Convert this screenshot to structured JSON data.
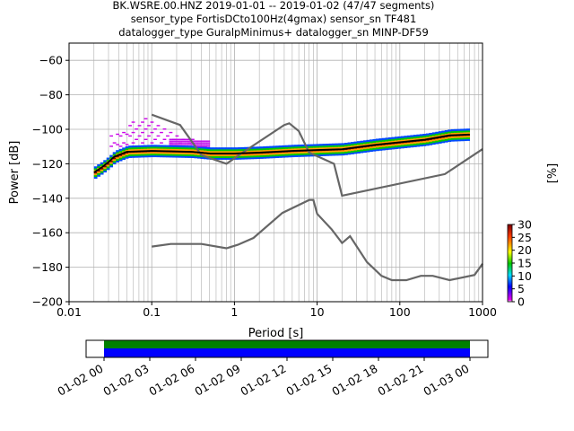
{
  "title_lines": [
    "BK.WSRE.00.HNZ   2019-01-01 -- 2019-01-02  (47/47 segments)",
    "sensor_type FortisDCto100Hz(4gmax) sensor_sn TF481",
    "datalogger_type GuralpMinimus+ datalogger_sn MINP-DF59"
  ],
  "chart_data": {
    "type": "heatmap",
    "xlabel": "Period [s]",
    "ylabel": "Power [dB]",
    "xscale": "log",
    "xlim": [
      0.01,
      1000
    ],
    "ylim": [
      -200,
      -50
    ],
    "xticks": [
      0.01,
      0.1,
      1,
      10,
      100,
      1000
    ],
    "xtick_labels": [
      "0.01",
      "0.1",
      "1",
      "10",
      "100",
      "1000"
    ],
    "yticks": [
      -60,
      -80,
      -100,
      -120,
      -140,
      -160,
      -180,
      -200
    ],
    "ytick_labels": [
      "−60",
      "−80",
      "−100",
      "−120",
      "−140",
      "−160",
      "−180",
      "−200"
    ],
    "grid": true,
    "colorbar": {
      "label": "[%]",
      "range": [
        0,
        30
      ],
      "ticks": [
        0,
        5,
        10,
        15,
        20,
        25,
        30
      ],
      "tick_labels": [
        "0",
        "5",
        "10",
        "15",
        "20",
        "25",
        "30"
      ]
    },
    "series": [
      {
        "name": "",
        "color": "#666666",
        "points": [
          [
            0.1,
            -91.5
          ],
          [
            0.22,
            -97.5
          ],
          [
            0.4,
            -115
          ],
          [
            0.8,
            -120
          ],
          [
            1.3,
            -113
          ],
          [
            4,
            -97.5
          ],
          [
            4.6,
            -96.5
          ],
          [
            6,
            -101
          ],
          [
            8,
            -113.5
          ],
          [
            16,
            -120
          ],
          [
            20,
            -138.5
          ],
          [
            350,
            -126
          ],
          [
            1000,
            -111.5
          ]
        ]
      },
      {
        "name": "",
        "color": "#666666",
        "points": [
          [
            0.1,
            -168
          ],
          [
            0.17,
            -166.5
          ],
          [
            0.4,
            -166.5
          ],
          [
            0.8,
            -169
          ],
          [
            1.1,
            -167
          ],
          [
            1.7,
            -163
          ],
          [
            3.8,
            -148.5
          ],
          [
            8,
            -141
          ],
          [
            9,
            -141
          ],
          [
            10,
            -149
          ],
          [
            15,
            -158
          ],
          [
            18,
            -163
          ],
          [
            20,
            -166
          ],
          [
            25,
            -162
          ],
          [
            40,
            -177
          ],
          [
            60,
            -185
          ],
          [
            80,
            -187.5
          ],
          [
            120,
            -187.5
          ],
          [
            180,
            -185
          ],
          [
            250,
            -185
          ],
          [
            400,
            -187.5
          ],
          [
            800,
            -184.5
          ],
          [
            1000,
            -178
          ]
        ]
      },
      {
        "name": "",
        "color": "#000000",
        "points": [
          [
            0.02,
            -125
          ],
          [
            0.025,
            -122
          ],
          [
            0.03,
            -119
          ],
          [
            0.035,
            -116
          ],
          [
            0.05,
            -113
          ],
          [
            0.1,
            -112.5
          ],
          [
            0.3,
            -113
          ],
          [
            0.5,
            -114
          ],
          [
            1,
            -114
          ],
          [
            2,
            -113.5
          ],
          [
            5,
            -112.5
          ],
          [
            10,
            -112
          ],
          [
            20,
            -111.5
          ],
          [
            50,
            -109
          ],
          [
            100,
            -107.5
          ],
          [
            200,
            -106
          ],
          [
            400,
            -103.5
          ],
          [
            700,
            -103
          ]
        ]
      }
    ],
    "timeline": {
      "tick_labels": [
        "01-02 00",
        "01-02 03",
        "01-02 06",
        "01-02 09",
        "01-02 12",
        "01-02 15",
        "01-02 18",
        "01-02 21",
        "01-03 00"
      ],
      "colors": [
        "#008000",
        "#0000ff"
      ]
    }
  }
}
